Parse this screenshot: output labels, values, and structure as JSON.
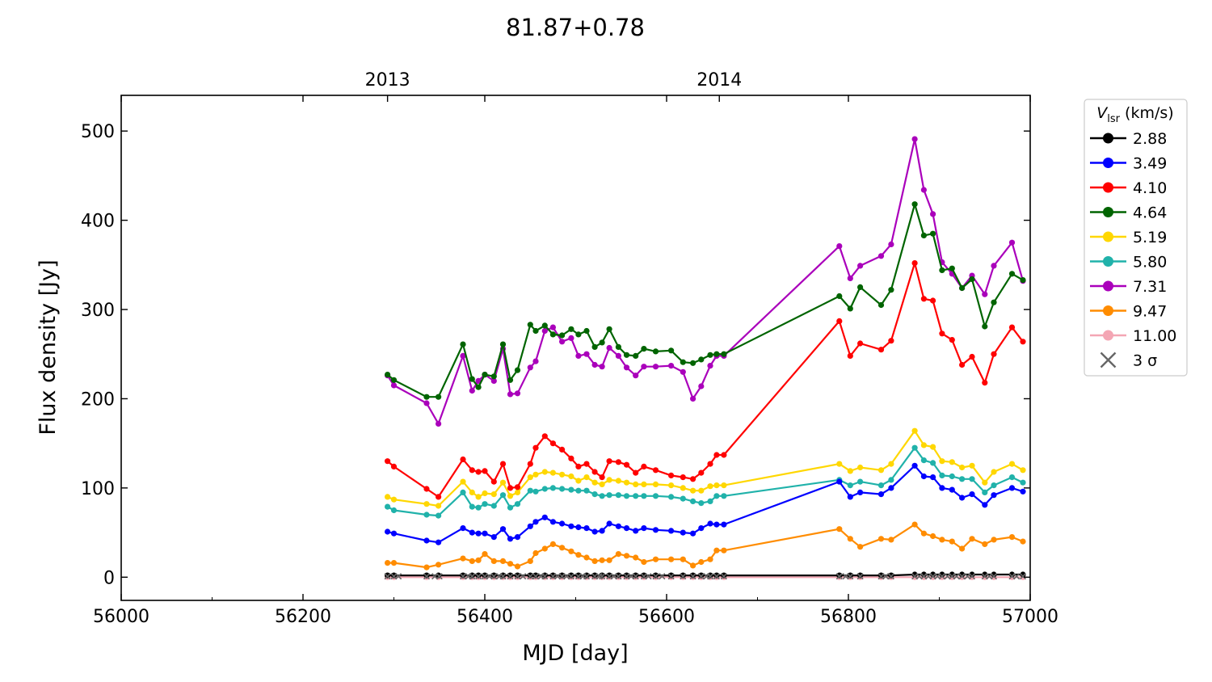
{
  "chart_data": {
    "type": "line",
    "title": "81.87+0.78",
    "xlabel": "MJD [day]",
    "ylabel": "Flux density [Jy]",
    "xlim": [
      56000,
      57000
    ],
    "ylim": [
      -26,
      540
    ],
    "x_ticks": [
      56000,
      56200,
      56400,
      56600,
      56800,
      57000
    ],
    "x_tick_labels": [
      "56000",
      "56200",
      "56400",
      "56600",
      "56800",
      "57000"
    ],
    "y_ticks": [
      0,
      100,
      200,
      300,
      400,
      500
    ],
    "y_tick_labels": [
      "0",
      "100",
      "200",
      "300",
      "400",
      "500"
    ],
    "top_axis": {
      "ticks": [
        56293,
        56658
      ],
      "labels": [
        "2013",
        "2014"
      ]
    },
    "grid": false,
    "legend": {
      "title": "V_lsr (km/s)",
      "title_main": "V",
      "title_sub": "lsr",
      "title_rest": " (km/s)",
      "placement": "outside-right",
      "sigma_label": "3 σ"
    },
    "colors": {
      "sigma_marker": "#666666"
    },
    "x": [
      56293,
      56300,
      56336,
      56349,
      56376,
      56386,
      56393,
      56400,
      56410,
      56420,
      56428,
      56436,
      56450,
      56456,
      56466,
      56475,
      56485,
      56495,
      56503,
      56512,
      56521,
      56529,
      56537,
      56547,
      56556,
      56566,
      56575,
      56588,
      56605,
      56618,
      56629,
      56638,
      56648,
      56655,
      56663,
      56790,
      56802,
      56813,
      56836,
      56847,
      56873,
      56883,
      56893,
      56903,
      56914,
      56925,
      56936,
      56950,
      56960,
      56980,
      56992
    ],
    "sigma_x": [
      56293,
      56300,
      56305,
      56336,
      56345,
      56350,
      56376,
      56382,
      56386,
      56393,
      56400,
      56405,
      56410,
      56416,
      56420,
      56428,
      56436,
      56442,
      56450,
      56456,
      56462,
      56466,
      56475,
      56480,
      56485,
      56490,
      56495,
      56503,
      56508,
      56512,
      56521,
      56526,
      56529,
      56537,
      56542,
      56547,
      56556,
      56561,
      56566,
      56575,
      56580,
      56588,
      56595,
      56605,
      56618,
      56629,
      56638,
      56644,
      56648,
      56655,
      56663,
      56790,
      56797,
      56802,
      56813,
      56836,
      56841,
      56847,
      56873,
      56878,
      56883,
      56888,
      56893,
      56898,
      56903,
      56909,
      56914,
      56919,
      56925,
      56931,
      56936,
      56950,
      56955,
      56960,
      56980,
      56985,
      56992
    ],
    "sigma_y": 1,
    "series": [
      {
        "name": "2.88",
        "color": "#000000",
        "values": [
          2,
          2,
          2,
          2,
          2,
          2,
          2,
          2,
          2,
          2,
          2,
          2,
          2,
          2,
          2,
          2,
          2,
          2,
          2,
          2,
          2,
          2,
          2,
          2,
          2,
          2,
          2,
          2,
          2,
          2,
          2,
          2,
          2,
          2,
          2,
          2,
          2,
          2,
          2,
          2,
          3,
          3,
          3,
          3,
          3,
          3,
          3,
          3,
          3,
          3,
          3
        ]
      },
      {
        "name": "3.49",
        "color": "#0000ff",
        "values": [
          51,
          49,
          41,
          39,
          55,
          50,
          49,
          49,
          45,
          54,
          43,
          45,
          57,
          62,
          67,
          62,
          60,
          57,
          56,
          55,
          51,
          52,
          60,
          57,
          55,
          52,
          55,
          53,
          52,
          50,
          49,
          55,
          60,
          59,
          59,
          107,
          90,
          95,
          93,
          100,
          125,
          113,
          112,
          100,
          98,
          89,
          93,
          81,
          92,
          100,
          96
        ]
      },
      {
        "name": "4.10",
        "color": "#ff0000",
        "values": [
          130,
          124,
          99,
          90,
          132,
          120,
          118,
          119,
          107,
          127,
          100,
          101,
          127,
          145,
          158,
          150,
          143,
          133,
          124,
          127,
          118,
          112,
          130,
          129,
          126,
          117,
          124,
          120,
          114,
          112,
          110,
          117,
          127,
          137,
          137,
          287,
          248,
          262,
          255,
          265,
          352,
          312,
          310,
          273,
          266,
          238,
          247,
          218,
          250,
          280,
          264
        ]
      },
      {
        "name": "4.64",
        "color": "#006400",
        "values": [
          227,
          221,
          202,
          202,
          261,
          222,
          213,
          227,
          225,
          261,
          221,
          232,
          283,
          276,
          282,
          272,
          271,
          278,
          272,
          276,
          258,
          263,
          278,
          258,
          249,
          248,
          256,
          253,
          254,
          241,
          240,
          244,
          249,
          250,
          250,
          315,
          301,
          325,
          305,
          322,
          418,
          383,
          385,
          344,
          346,
          324,
          334,
          281,
          308,
          340,
          333
        ]
      },
      {
        "name": "5.19",
        "color": "#ffd700",
        "values": [
          90,
          87,
          82,
          80,
          107,
          95,
          90,
          94,
          93,
          106,
          91,
          95,
          112,
          115,
          118,
          117,
          115,
          113,
          108,
          112,
          106,
          104,
          109,
          108,
          106,
          104,
          104,
          104,
          103,
          100,
          97,
          97,
          102,
          103,
          103,
          127,
          119,
          123,
          120,
          127,
          164,
          148,
          146,
          130,
          129,
          123,
          125,
          106,
          118,
          127,
          120
        ]
      },
      {
        "name": "5.80",
        "color": "#20b2aa",
        "values": [
          79,
          75,
          70,
          69,
          95,
          79,
          78,
          82,
          80,
          92,
          78,
          82,
          97,
          96,
          99,
          100,
          99,
          98,
          97,
          97,
          93,
          91,
          92,
          92,
          91,
          91,
          91,
          91,
          90,
          88,
          85,
          83,
          85,
          91,
          91,
          109,
          103,
          107,
          103,
          109,
          145,
          131,
          128,
          114,
          113,
          110,
          110,
          95,
          103,
          112,
          106
        ]
      },
      {
        "name": "7.31",
        "color": "#aa00bb",
        "values": [
          226,
          215,
          195,
          172,
          248,
          209,
          220,
          227,
          220,
          256,
          205,
          206,
          235,
          242,
          276,
          280,
          264,
          268,
          248,
          250,
          238,
          236,
          257,
          248,
          235,
          226,
          236,
          236,
          237,
          230,
          200,
          214,
          237,
          248,
          248,
          371,
          335,
          349,
          360,
          373,
          491,
          434,
          407,
          353,
          340,
          324,
          338,
          317,
          349,
          375,
          332
        ]
      },
      {
        "name": "9.47",
        "color": "#ff8c00",
        "values": [
          16,
          16,
          11,
          14,
          21,
          18,
          19,
          26,
          18,
          18,
          15,
          12,
          18,
          27,
          32,
          37,
          33,
          29,
          25,
          22,
          18,
          19,
          19,
          26,
          24,
          22,
          17,
          20,
          20,
          20,
          13,
          17,
          20,
          30,
          30,
          54,
          43,
          34,
          43,
          42,
          59,
          49,
          46,
          42,
          40,
          32,
          43,
          37,
          42,
          45,
          40
        ]
      },
      {
        "name": "11.00",
        "color": "#f4a6b4",
        "values": [
          0,
          0,
          0,
          0,
          0,
          0,
          0,
          0,
          0,
          0,
          0,
          0,
          0,
          0,
          0,
          0,
          0,
          0,
          0,
          0,
          0,
          0,
          0,
          0,
          0,
          0,
          0,
          0,
          0,
          0,
          0,
          0,
          0,
          0,
          0,
          0,
          0,
          0,
          0,
          0,
          0,
          0,
          0,
          0,
          0,
          0,
          0,
          0,
          0,
          0,
          0
        ]
      }
    ]
  }
}
